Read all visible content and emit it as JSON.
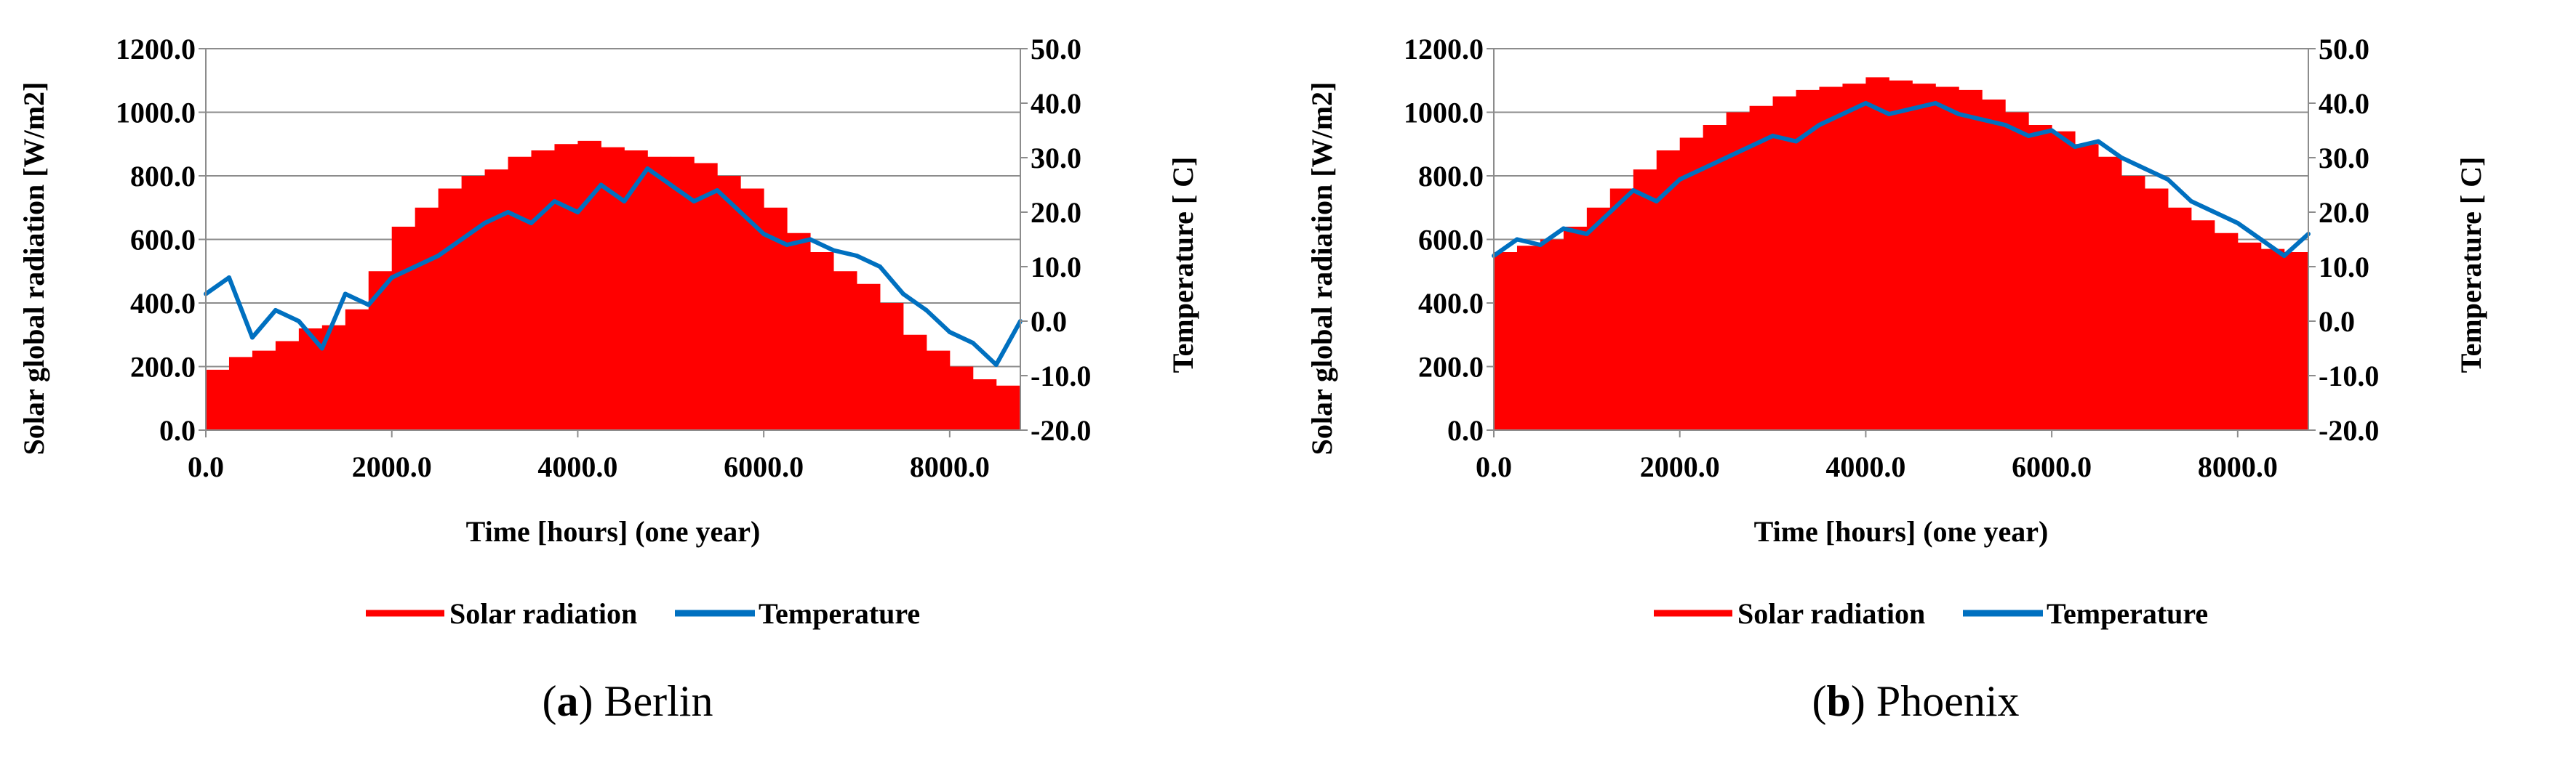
{
  "chart_data": [
    {
      "type": "bar",
      "caption_prefix": "(",
      "caption_letter": "a",
      "caption_suffix": ")",
      "caption_name": "Berlin",
      "xlabel": "Time [hours] (one year)",
      "ylabel": "Solar global radiation [W/m2]",
      "y2label": "Temperature [    C]",
      "xlim": [
        0,
        8760
      ],
      "ylim": [
        0,
        1200
      ],
      "y2lim": [
        -20,
        50
      ],
      "xticks": [
        "0.0",
        "2000.0",
        "4000.0",
        "6000.0",
        "8000.0"
      ],
      "xtick_values": [
        0,
        2000,
        4000,
        6000,
        8000
      ],
      "yticks": [
        "0.0",
        "200.0",
        "400.0",
        "600.0",
        "800.0",
        "1000.0",
        "1200.0"
      ],
      "y2ticks": [
        "-20.0",
        "-10.0",
        "0.0",
        "10.0",
        "20.0",
        "30.0",
        "40.0",
        "50.0"
      ],
      "grid": true,
      "legend_position": "bottom",
      "series": [
        {
          "name": "Solar radiation",
          "axis": "left",
          "style": "bar",
          "color": "#ff0000",
          "x": [
            0,
            250,
            500,
            750,
            1000,
            1250,
            1500,
            1750,
            2000,
            2250,
            2500,
            2750,
            3000,
            3250,
            3500,
            3750,
            4000,
            4250,
            4500,
            4750,
            5000,
            5250,
            5500,
            5750,
            6000,
            6250,
            6500,
            6750,
            7000,
            7250,
            7500,
            7750,
            8000,
            8250,
            8500,
            8760
          ],
          "values": [
            190,
            230,
            250,
            280,
            320,
            330,
            380,
            500,
            640,
            700,
            760,
            800,
            820,
            860,
            880,
            900,
            910,
            890,
            880,
            860,
            860,
            840,
            800,
            760,
            700,
            620,
            560,
            500,
            460,
            400,
            300,
            250,
            200,
            160,
            140,
            120
          ]
        },
        {
          "name": "Temperature",
          "axis": "right",
          "style": "line",
          "color": "#0070c0",
          "x": [
            0,
            250,
            500,
            750,
            1000,
            1250,
            1500,
            1750,
            2000,
            2250,
            2500,
            2750,
            3000,
            3250,
            3500,
            3750,
            4000,
            4250,
            4500,
            4750,
            5000,
            5250,
            5500,
            5750,
            6000,
            6250,
            6500,
            6750,
            7000,
            7250,
            7500,
            7750,
            8000,
            8250,
            8500,
            8760
          ],
          "values": [
            5,
            8,
            -3,
            2,
            0,
            -5,
            5,
            3,
            8,
            10,
            12,
            15,
            18,
            20,
            18,
            22,
            20,
            25,
            22,
            28,
            25,
            22,
            24,
            20,
            16,
            14,
            15,
            13,
            12,
            10,
            5,
            2,
            -2,
            -4,
            -8,
            0
          ]
        }
      ]
    },
    {
      "type": "bar",
      "caption_prefix": "(",
      "caption_letter": "b",
      "caption_suffix": ")",
      "caption_name": "Phoenix",
      "xlabel": "Time [hours] (one year)",
      "ylabel": "Solar global radiation [W/m2]",
      "y2label": "Temperature [    C]",
      "xlim": [
        0,
        8760
      ],
      "ylim": [
        0,
        1200
      ],
      "y2lim": [
        -20,
        50
      ],
      "xticks": [
        "0.0",
        "2000.0",
        "4000.0",
        "6000.0",
        "8000.0"
      ],
      "xtick_values": [
        0,
        2000,
        4000,
        6000,
        8000
      ],
      "yticks": [
        "0.0",
        "200.0",
        "400.0",
        "600.0",
        "800.0",
        "1000.0",
        "1200.0"
      ],
      "y2ticks": [
        "-20.0",
        "-10.0",
        "0.0",
        "10.0",
        "20.0",
        "30.0",
        "40.0",
        "50.0"
      ],
      "grid": true,
      "legend_position": "bottom",
      "series": [
        {
          "name": "Solar radiation",
          "axis": "left",
          "style": "bar",
          "color": "#ff0000",
          "x": [
            0,
            250,
            500,
            750,
            1000,
            1250,
            1500,
            1750,
            2000,
            2250,
            2500,
            2750,
            3000,
            3250,
            3500,
            3750,
            4000,
            4250,
            4500,
            4750,
            5000,
            5250,
            5500,
            5750,
            6000,
            6250,
            6500,
            6750,
            7000,
            7250,
            7500,
            7750,
            8000,
            8250,
            8500,
            8760
          ],
          "values": [
            560,
            580,
            600,
            640,
            700,
            760,
            820,
            880,
            920,
            960,
            1000,
            1020,
            1050,
            1070,
            1080,
            1090,
            1110,
            1100,
            1090,
            1080,
            1070,
            1040,
            1000,
            960,
            940,
            900,
            860,
            800,
            760,
            700,
            660,
            620,
            590,
            570,
            560,
            550
          ]
        },
        {
          "name": "Temperature",
          "axis": "right",
          "style": "line",
          "color": "#0070c0",
          "x": [
            0,
            250,
            500,
            750,
            1000,
            1250,
            1500,
            1750,
            2000,
            2250,
            2500,
            2750,
            3000,
            3250,
            3500,
            3750,
            4000,
            4250,
            4500,
            4750,
            5000,
            5250,
            5500,
            5750,
            6000,
            6250,
            6500,
            6750,
            7000,
            7250,
            7500,
            7750,
            8000,
            8250,
            8500,
            8760
          ],
          "values": [
            12,
            15,
            14,
            17,
            16,
            20,
            24,
            22,
            26,
            28,
            30,
            32,
            34,
            33,
            36,
            38,
            40,
            38,
            39,
            40,
            38,
            37,
            36,
            34,
            35,
            32,
            33,
            30,
            28,
            26,
            22,
            20,
            18,
            15,
            12,
            16
          ]
        }
      ]
    }
  ]
}
